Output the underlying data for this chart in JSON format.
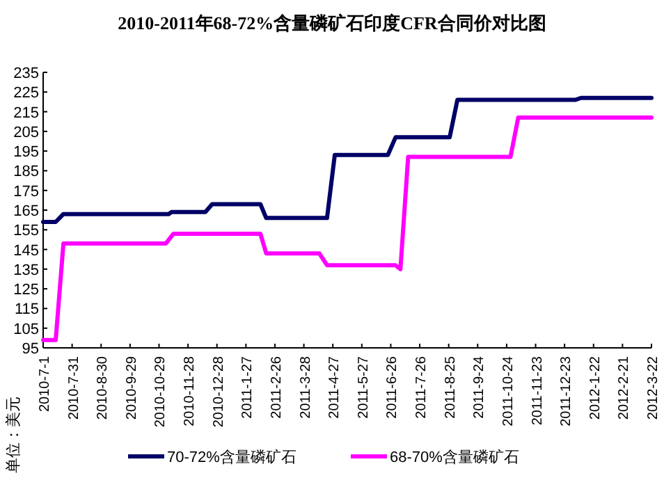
{
  "chart_data": {
    "type": "line",
    "title": "2010-2011年68-72%含量磷矿石印度CFR合同价对比图",
    "ylabel": "单位：美元",
    "xlim": [
      "2010-07-01",
      "2012-03-22"
    ],
    "xticks": [
      {
        "value": "2010-07-01",
        "label": "2010-7-1"
      },
      {
        "value": "2010-07-31",
        "label": "2010-7-31"
      },
      {
        "value": "2010-08-30",
        "label": "2010-8-30"
      },
      {
        "value": "2010-09-29",
        "label": "2010-9-29"
      },
      {
        "value": "2010-10-29",
        "label": "2010-10-29"
      },
      {
        "value": "2010-11-28",
        "label": "2010-11-28"
      },
      {
        "value": "2010-12-28",
        "label": "2010-12-28"
      },
      {
        "value": "2011-01-27",
        "label": "2011-1-27"
      },
      {
        "value": "2011-02-26",
        "label": "2011-2-26"
      },
      {
        "value": "2011-03-28",
        "label": "2011-3-28"
      },
      {
        "value": "2011-04-27",
        "label": "2011-4-27"
      },
      {
        "value": "2011-05-27",
        "label": "2011-5-27"
      },
      {
        "value": "2011-06-26",
        "label": "2011-6-26"
      },
      {
        "value": "2011-07-26",
        "label": "2011-7-26"
      },
      {
        "value": "2011-08-25",
        "label": "2011-8-25"
      },
      {
        "value": "2011-09-24",
        "label": "2011-9-24"
      },
      {
        "value": "2011-10-24",
        "label": "2011-10-24"
      },
      {
        "value": "2011-11-23",
        "label": "2011-11-23"
      },
      {
        "value": "2011-12-23",
        "label": "2011-12-23"
      },
      {
        "value": "2012-01-22",
        "label": "2012-1-22"
      },
      {
        "value": "2012-02-21",
        "label": "2012-2-21"
      },
      {
        "value": "2012-03-22",
        "label": "2012-3-22"
      }
    ],
    "ylim": [
      95,
      235
    ],
    "yticks": [
      95,
      105,
      115,
      125,
      135,
      145,
      155,
      165,
      175,
      185,
      195,
      205,
      215,
      225,
      235
    ],
    "grid": false,
    "legend": "bottom",
    "line_style": "solid",
    "series": [
      {
        "name": "70-72%含量磷矿石",
        "color": "#000066",
        "x": [
          "2010-07-01",
          "2010-07-14",
          "2010-07-22",
          "2010-11-08",
          "2010-11-11",
          "2010-12-16",
          "2010-12-23",
          "2011-02-11",
          "2011-02-17",
          "2011-04-21",
          "2011-04-29",
          "2011-06-23",
          "2011-07-01",
          "2011-08-26",
          "2011-09-03",
          "2012-01-03",
          "2012-01-09",
          "2012-03-22"
        ],
        "values": [
          159,
          159,
          163,
          163,
          164,
          164,
          168,
          168,
          161,
          161,
          193,
          193,
          202,
          202,
          221,
          221,
          222,
          222
        ]
      },
      {
        "name": "68-70%含量磷矿石",
        "color": "#ff00ff",
        "x": [
          "2010-07-01",
          "2010-07-14",
          "2010-07-22",
          "2010-11-05",
          "2010-11-13",
          "2011-02-11",
          "2011-02-17",
          "2011-04-13",
          "2011-04-21",
          "2011-07-01",
          "2011-07-06",
          "2011-07-14",
          "2011-10-28",
          "2011-11-05",
          "2012-03-22"
        ],
        "values": [
          99,
          99,
          148,
          148,
          153,
          153,
          143,
          143,
          137,
          137,
          135,
          192,
          192,
          212,
          212
        ]
      }
    ]
  }
}
